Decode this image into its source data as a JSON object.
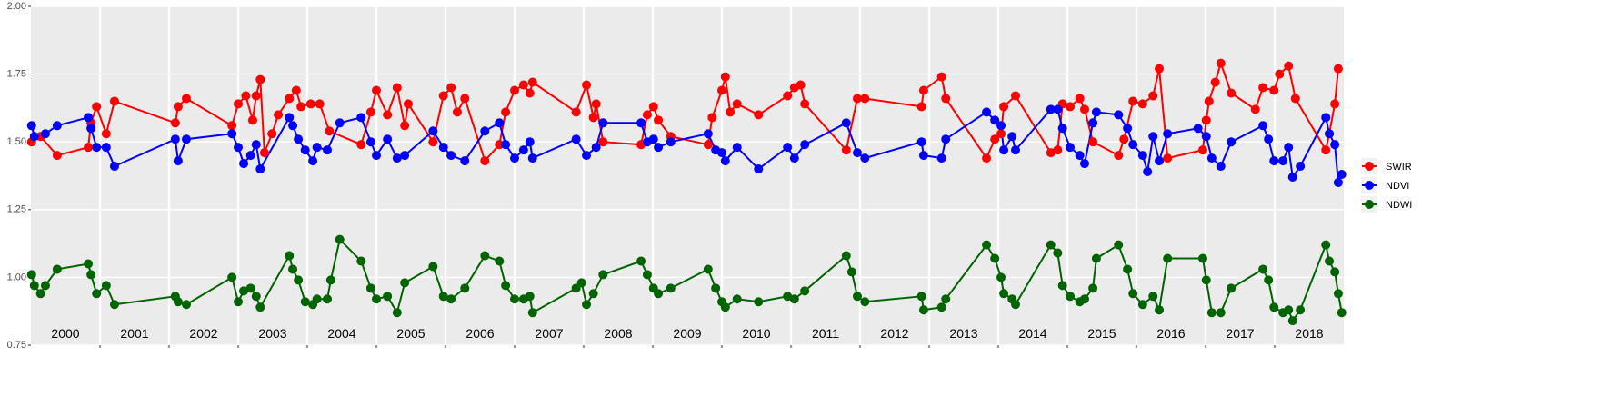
{
  "chart_data": {
    "type": "line",
    "xlim": [
      2000,
      2019
    ],
    "xticks": [
      2001,
      2002,
      2003,
      2004,
      2005,
      2006,
      2007,
      2008,
      2009,
      2010,
      2011,
      2012,
      2013,
      2014,
      2015,
      2016,
      2017,
      2018
    ],
    "ylim": [
      0.75,
      2.0
    ],
    "yticks": [
      0.75,
      {
        "value": 1.0,
        "label": "1.00"
      },
      1.25,
      {
        "value": 1.5,
        "label": "1.50"
      },
      1.75,
      {
        "value": 2.0,
        "label": "2.00"
      }
    ],
    "grid": true,
    "legend": "right",
    "annotations": [
      {
        "x": 2000.5,
        "y": 0.79,
        "text": "2000"
      },
      {
        "x": 2001.5,
        "y": 0.79,
        "text": "2001"
      },
      {
        "x": 2002.5,
        "y": 0.79,
        "text": "2002"
      },
      {
        "x": 2003.5,
        "y": 0.79,
        "text": "2003"
      },
      {
        "x": 2004.5,
        "y": 0.79,
        "text": "2004"
      },
      {
        "x": 2005.5,
        "y": 0.79,
        "text": "2005"
      },
      {
        "x": 2006.5,
        "y": 0.79,
        "text": "2006"
      },
      {
        "x": 2007.5,
        "y": 0.79,
        "text": "2007"
      },
      {
        "x": 2008.5,
        "y": 0.79,
        "text": "2008"
      },
      {
        "x": 2009.5,
        "y": 0.79,
        "text": "2009"
      },
      {
        "x": 2010.5,
        "y": 0.79,
        "text": "2010"
      },
      {
        "x": 2011.5,
        "y": 0.79,
        "text": "2011"
      },
      {
        "x": 2012.5,
        "y": 0.79,
        "text": "2012"
      },
      {
        "x": 2013.5,
        "y": 0.79,
        "text": "2013"
      },
      {
        "x": 2014.5,
        "y": 0.79,
        "text": "2014"
      },
      {
        "x": 2015.5,
        "y": 0.79,
        "text": "2015"
      },
      {
        "x": 2016.5,
        "y": 0.79,
        "text": "2016"
      },
      {
        "x": 2017.5,
        "y": 0.79,
        "text": "2017"
      },
      {
        "x": 2018.5,
        "y": 0.79,
        "text": "2018"
      }
    ],
    "series": [
      {
        "name": "SWIR",
        "color": "#ff0000",
        "x": [
          2000.01,
          2000.14,
          2000.38,
          2000.83,
          2000.87,
          2000.95,
          2001.09,
          2001.21,
          2002.09,
          2002.13,
          2002.25,
          2002.91,
          2003.0,
          2003.11,
          2003.21,
          2003.26,
          2003.32,
          2003.38,
          2003.49,
          2003.58,
          2003.74,
          2003.84,
          2003.91,
          2004.05,
          2004.18,
          2004.32,
          2004.78,
          2004.92,
          2005.0,
          2005.16,
          2005.3,
          2005.41,
          2005.46,
          2005.82,
          2005.97,
          2006.08,
          2006.17,
          2006.28,
          2006.57,
          2006.78,
          2006.87,
          2007.0,
          2007.13,
          2007.22,
          2007.26,
          2007.89,
          2008.04,
          2008.14,
          2008.18,
          2008.28,
          2008.83,
          2008.92,
          2009.01,
          2009.08,
          2009.26,
          2009.8,
          2009.86,
          2010.0,
          2010.05,
          2010.12,
          2010.22,
          2010.53,
          2010.95,
          2011.05,
          2011.14,
          2011.2,
          2011.8,
          2011.96,
          2012.07,
          2012.89,
          2012.92,
          2013.18,
          2013.24,
          2013.83,
          2013.95,
          2014.04,
          2014.08,
          2014.25,
          2014.76,
          2014.86,
          2014.93,
          2015.04,
          2015.18,
          2015.25,
          2015.37,
          2015.74,
          2015.82,
          2015.95,
          2016.09,
          2016.24,
          2016.33,
          2016.45,
          2016.96,
          2017.01,
          2017.05,
          2017.14,
          2017.22,
          2017.37,
          2017.72,
          2017.83,
          2017.99,
          2018.07,
          2018.2,
          2018.3,
          2018.74,
          2018.79,
          2018.87,
          2018.92
        ],
        "values": [
          1.5,
          1.52,
          1.45,
          1.48,
          1.57,
          1.63,
          1.53,
          1.65,
          1.57,
          1.63,
          1.66,
          1.56,
          1.64,
          1.67,
          1.58,
          1.67,
          1.73,
          1.46,
          1.53,
          1.6,
          1.66,
          1.69,
          1.63,
          1.64,
          1.64,
          1.54,
          1.49,
          1.61,
          1.69,
          1.6,
          1.7,
          1.56,
          1.64,
          1.5,
          1.67,
          1.7,
          1.61,
          1.66,
          1.43,
          1.49,
          1.61,
          1.69,
          1.71,
          1.68,
          1.72,
          1.61,
          1.71,
          1.59,
          1.64,
          1.5,
          1.49,
          1.6,
          1.63,
          1.58,
          1.52,
          1.49,
          1.59,
          1.69,
          1.74,
          1.61,
          1.64,
          1.6,
          1.67,
          1.7,
          1.71,
          1.64,
          1.47,
          1.66,
          1.66,
          1.63,
          1.69,
          1.74,
          1.66,
          1.44,
          1.51,
          1.53,
          1.63,
          1.67,
          1.46,
          1.47,
          1.64,
          1.63,
          1.66,
          1.62,
          1.5,
          1.45,
          1.51,
          1.65,
          1.64,
          1.67,
          1.77,
          1.44,
          1.47,
          1.58,
          1.65,
          1.72,
          1.79,
          1.68,
          1.62,
          1.7,
          1.69,
          1.75,
          1.78,
          1.66,
          1.47,
          1.53,
          1.64,
          1.77
        ]
      },
      {
        "name": "NDVI",
        "color": "#0000ff",
        "x": [
          2000.01,
          2000.05,
          2000.21,
          2000.38,
          2000.83,
          2000.87,
          2000.95,
          2001.09,
          2001.21,
          2002.09,
          2002.13,
          2002.25,
          2002.91,
          2003.0,
          2003.08,
          2003.18,
          2003.26,
          2003.32,
          2003.74,
          2003.79,
          2003.87,
          2003.97,
          2004.08,
          2004.14,
          2004.29,
          2004.47,
          2004.78,
          2004.92,
          2005.0,
          2005.16,
          2005.3,
          2005.41,
          2005.82,
          2005.97,
          2006.08,
          2006.28,
          2006.57,
          2006.78,
          2006.87,
          2007.0,
          2007.13,
          2007.22,
          2007.26,
          2007.89,
          2008.04,
          2008.18,
          2008.28,
          2008.83,
          2008.92,
          2009.01,
          2009.08,
          2009.26,
          2009.8,
          2009.91,
          2010.0,
          2010.05,
          2010.22,
          2010.53,
          2010.95,
          2011.05,
          2011.2,
          2011.8,
          2011.96,
          2012.07,
          2012.89,
          2012.92,
          2013.18,
          2013.24,
          2013.83,
          2013.95,
          2014.04,
          2014.08,
          2014.2,
          2014.25,
          2014.76,
          2014.86,
          2014.93,
          2015.04,
          2015.18,
          2015.25,
          2015.37,
          2015.42,
          2015.74,
          2015.87,
          2015.95,
          2016.09,
          2016.16,
          2016.24,
          2016.33,
          2016.45,
          2016.89,
          2017.01,
          2017.09,
          2017.22,
          2017.37,
          2017.83,
          2017.91,
          2017.99,
          2018.12,
          2018.2,
          2018.26,
          2018.37,
          2018.74,
          2018.79,
          2018.87,
          2018.92,
          2018.97
        ],
        "values": [
          1.56,
          1.52,
          1.53,
          1.56,
          1.59,
          1.55,
          1.48,
          1.48,
          1.41,
          1.51,
          1.43,
          1.51,
          1.53,
          1.48,
          1.42,
          1.45,
          1.49,
          1.4,
          1.59,
          1.56,
          1.51,
          1.47,
          1.43,
          1.48,
          1.47,
          1.57,
          1.59,
          1.5,
          1.45,
          1.51,
          1.44,
          1.45,
          1.54,
          1.48,
          1.45,
          1.43,
          1.54,
          1.57,
          1.49,
          1.44,
          1.47,
          1.5,
          1.44,
          1.51,
          1.45,
          1.48,
          1.57,
          1.57,
          1.5,
          1.51,
          1.48,
          1.5,
          1.53,
          1.47,
          1.46,
          1.43,
          1.48,
          1.4,
          1.48,
          1.44,
          1.49,
          1.57,
          1.46,
          1.44,
          1.5,
          1.45,
          1.44,
          1.51,
          1.61,
          1.58,
          1.56,
          1.47,
          1.52,
          1.47,
          1.62,
          1.62,
          1.55,
          1.48,
          1.45,
          1.42,
          1.57,
          1.61,
          1.6,
          1.55,
          1.49,
          1.45,
          1.39,
          1.52,
          1.43,
          1.53,
          1.55,
          1.52,
          1.44,
          1.41,
          1.5,
          1.56,
          1.51,
          1.43,
          1.43,
          1.48,
          1.37,
          1.41,
          1.59,
          1.53,
          1.49,
          1.35,
          1.38
        ]
      },
      {
        "name": "NDWI",
        "color": "#006400",
        "x": [
          2000.01,
          2000.05,
          2000.14,
          2000.21,
          2000.38,
          2000.83,
          2000.87,
          2000.95,
          2001.09,
          2001.21,
          2002.09,
          2002.13,
          2002.25,
          2002.91,
          2003.0,
          2003.08,
          2003.18,
          2003.26,
          2003.32,
          2003.74,
          2003.79,
          2003.87,
          2003.97,
          2004.08,
          2004.14,
          2004.29,
          2004.34,
          2004.47,
          2004.78,
          2004.92,
          2005.0,
          2005.16,
          2005.3,
          2005.41,
          2005.82,
          2005.97,
          2006.08,
          2006.28,
          2006.57,
          2006.78,
          2006.87,
          2007.0,
          2007.13,
          2007.22,
          2007.26,
          2007.89,
          2007.97,
          2008.04,
          2008.14,
          2008.28,
          2008.83,
          2008.92,
          2009.01,
          2009.08,
          2009.26,
          2009.8,
          2009.91,
          2010.0,
          2010.05,
          2010.22,
          2010.53,
          2010.95,
          2011.05,
          2011.2,
          2011.8,
          2011.88,
          2011.96,
          2012.07,
          2012.89,
          2012.92,
          2013.18,
          2013.24,
          2013.83,
          2013.95,
          2014.04,
          2014.08,
          2014.2,
          2014.25,
          2014.76,
          2014.86,
          2014.93,
          2015.04,
          2015.18,
          2015.25,
          2015.37,
          2015.42,
          2015.74,
          2015.87,
          2015.95,
          2016.09,
          2016.24,
          2016.33,
          2016.45,
          2016.96,
          2017.01,
          2017.09,
          2017.22,
          2017.37,
          2017.83,
          2017.91,
          2017.99,
          2018.12,
          2018.2,
          2018.26,
          2018.37,
          2018.74,
          2018.79,
          2018.87,
          2018.92,
          2018.97
        ],
        "values": [
          1.01,
          0.97,
          0.94,
          0.97,
          1.03,
          1.05,
          1.01,
          0.94,
          0.97,
          0.9,
          0.93,
          0.91,
          0.9,
          1.0,
          0.91,
          0.95,
          0.96,
          0.93,
          0.89,
          1.08,
          1.03,
          0.99,
          0.91,
          0.9,
          0.92,
          0.92,
          0.99,
          1.14,
          1.06,
          0.96,
          0.92,
          0.93,
          0.87,
          0.98,
          1.04,
          0.93,
          0.92,
          0.96,
          1.08,
          1.06,
          0.97,
          0.92,
          0.92,
          0.93,
          0.87,
          0.96,
          0.98,
          0.9,
          0.94,
          1.01,
          1.06,
          1.01,
          0.96,
          0.94,
          0.96,
          1.03,
          0.96,
          0.91,
          0.89,
          0.92,
          0.91,
          0.93,
          0.92,
          0.95,
          1.08,
          1.02,
          0.93,
          0.91,
          0.93,
          0.88,
          0.89,
          0.92,
          1.12,
          1.07,
          1.0,
          0.94,
          0.92,
          0.9,
          1.12,
          1.09,
          0.97,
          0.93,
          0.91,
          0.92,
          0.96,
          1.07,
          1.12,
          1.03,
          0.94,
          0.9,
          0.93,
          0.88,
          1.07,
          1.07,
          0.99,
          0.87,
          0.87,
          0.96,
          1.03,
          0.99,
          0.89,
          0.87,
          0.88,
          0.84,
          0.88,
          1.12,
          1.06,
          1.02,
          0.94,
          0.87
        ]
      }
    ]
  }
}
